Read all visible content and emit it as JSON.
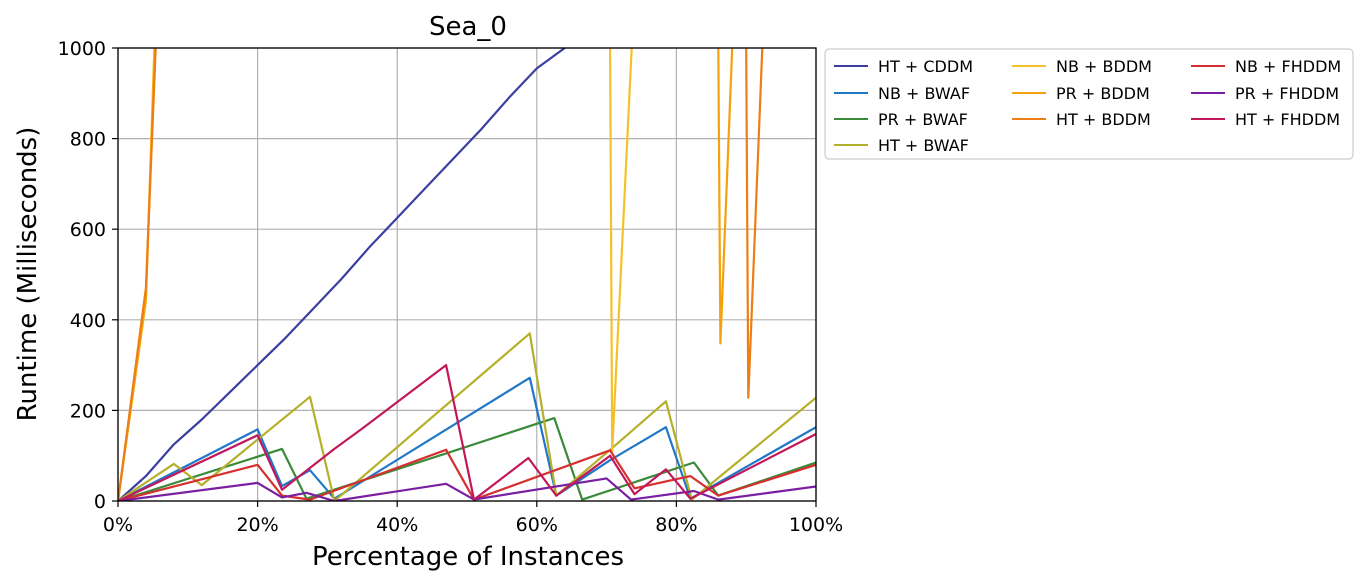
{
  "chart_data": {
    "type": "line",
    "title": "Sea_0",
    "xlabel": "Percentage of Instances",
    "ylabel": "Runtime (Milliseconds)",
    "xlim": [
      0,
      100
    ],
    "ylim": [
      0,
      1000
    ],
    "x_ticks": [
      "0%",
      "20%",
      "40%",
      "60%",
      "80%",
      "100%"
    ],
    "y_ticks": [
      "0",
      "200",
      "400",
      "600",
      "800",
      "1000"
    ],
    "grid": true,
    "legend_position": "outside top-right",
    "series": [
      {
        "name": "HT + CDDM",
        "color": "#3a3fa0",
        "points": [
          [
            0,
            0
          ],
          [
            4,
            55
          ],
          [
            8,
            125
          ],
          [
            12,
            180
          ],
          [
            16,
            240
          ],
          [
            20,
            300
          ],
          [
            24,
            360
          ],
          [
            28,
            425
          ],
          [
            32,
            490
          ],
          [
            36,
            560
          ],
          [
            40,
            625
          ],
          [
            44,
            690
          ],
          [
            48,
            755
          ],
          [
            52,
            820
          ],
          [
            56,
            890
          ],
          [
            60,
            955
          ],
          [
            64,
            1000
          ]
        ]
      },
      {
        "name": "NB + BWAF",
        "color": "#1f77c8",
        "points": [
          [
            0,
            0
          ],
          [
            20,
            158
          ],
          [
            23.5,
            33
          ],
          [
            27.5,
            68
          ],
          [
            31,
            5
          ],
          [
            59,
            272
          ],
          [
            62.8,
            12
          ],
          [
            70.5,
            90
          ],
          [
            78.5,
            163
          ],
          [
            82,
            5
          ],
          [
            100,
            163
          ]
        ]
      },
      {
        "name": "PR + BWAF",
        "color": "#3a8a3a",
        "points": [
          [
            0,
            0
          ],
          [
            23.5,
            115
          ],
          [
            27,
            5
          ],
          [
            47,
            105
          ],
          [
            62.5,
            183
          ],
          [
            66.5,
            3
          ],
          [
            82.5,
            85
          ],
          [
            86,
            12
          ],
          [
            100,
            85
          ]
        ]
      },
      {
        "name": "HT + BWAF",
        "color": "#b5b02a",
        "points": [
          [
            0,
            0
          ],
          [
            8,
            82
          ],
          [
            12,
            35
          ],
          [
            27.5,
            230
          ],
          [
            31,
            0
          ],
          [
            59,
            370
          ],
          [
            62.8,
            12
          ],
          [
            70.5,
            113
          ],
          [
            78.5,
            220
          ],
          [
            82.2,
            3
          ],
          [
            100,
            228
          ]
        ]
      },
      {
        "name": "NB + BDDM",
        "color": "#f5c12a",
        "points": [
          [
            0,
            0
          ],
          [
            4,
            440
          ],
          [
            5.2,
            1000
          ],
          [
            null,
            null
          ],
          [
            70.5,
            1000
          ],
          [
            70.8,
            110
          ],
          [
            73.6,
            1000
          ]
        ]
      },
      {
        "name": "PR + BDDM",
        "color": "#f5a00f",
        "points": [
          [
            0,
            0
          ],
          [
            4,
            450
          ],
          [
            5.3,
            1000
          ],
          [
            null,
            null
          ],
          [
            86,
            1000
          ],
          [
            86.3,
            348
          ],
          [
            88,
            1000
          ]
        ]
      },
      {
        "name": "HT + BDDM",
        "color": "#ec7e15",
        "points": [
          [
            0,
            0
          ],
          [
            4,
            470
          ],
          [
            5.4,
            1000
          ],
          [
            null,
            null
          ],
          [
            90,
            1000
          ],
          [
            90.3,
            228
          ],
          [
            92.3,
            1000
          ]
        ]
      },
      {
        "name": "NB + FHDDM",
        "color": "#d62f2f",
        "points": [
          [
            0,
            0
          ],
          [
            20,
            80
          ],
          [
            23.5,
            12
          ],
          [
            27.5,
            3
          ],
          [
            47,
            113
          ],
          [
            51,
            3
          ],
          [
            70.5,
            112
          ],
          [
            74,
            28
          ],
          [
            82,
            55
          ],
          [
            86,
            12
          ],
          [
            100,
            80
          ]
        ]
      },
      {
        "name": "PR + FHDDM",
        "color": "#7b1fa2",
        "points": [
          [
            0,
            0
          ],
          [
            20,
            40
          ],
          [
            23.5,
            8
          ],
          [
            27,
            18
          ],
          [
            31,
            0
          ],
          [
            47,
            38
          ],
          [
            51,
            3
          ],
          [
            70,
            50
          ],
          [
            73.5,
            3
          ],
          [
            82.5,
            22
          ],
          [
            86,
            3
          ],
          [
            100,
            32
          ]
        ]
      },
      {
        "name": "HT + FHDDM",
        "color": "#c2185b",
        "points": [
          [
            0,
            0
          ],
          [
            20,
            145
          ],
          [
            23.5,
            25
          ],
          [
            31,
            115
          ],
          [
            35,
            160
          ],
          [
            47,
            300
          ],
          [
            51,
            3
          ],
          [
            58.8,
            95
          ],
          [
            62.8,
            12
          ],
          [
            70.5,
            100
          ],
          [
            74,
            15
          ],
          [
            78.5,
            70
          ],
          [
            82,
            5
          ],
          [
            100,
            148
          ]
        ]
      }
    ]
  }
}
